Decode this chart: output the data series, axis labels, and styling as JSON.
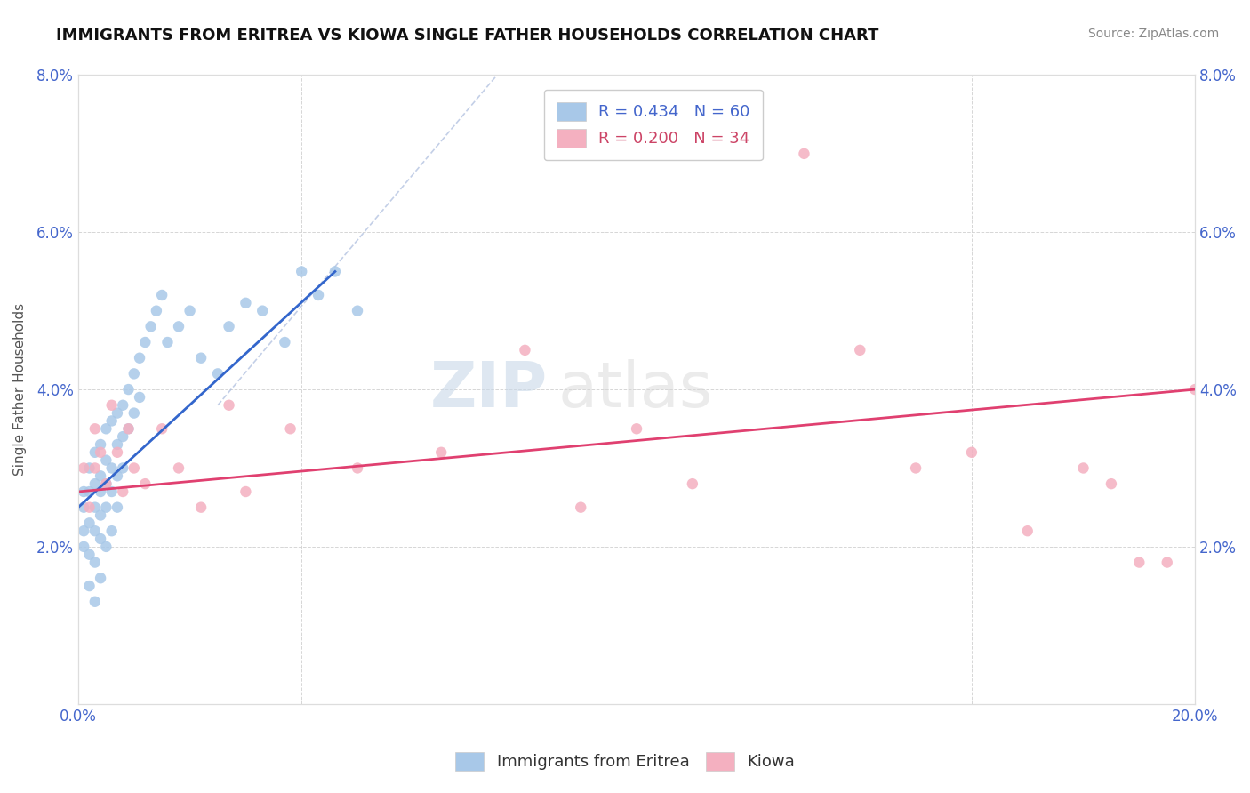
{
  "title": "IMMIGRANTS FROM ERITREA VS KIOWA SINGLE FATHER HOUSEHOLDS CORRELATION CHART",
  "source": "Source: ZipAtlas.com",
  "ylabel": "Single Father Households",
  "xlim": [
    0.0,
    0.2
  ],
  "ylim": [
    0.0,
    0.08
  ],
  "xtick_vals": [
    0.0,
    0.04,
    0.08,
    0.12,
    0.16,
    0.2
  ],
  "ytick_vals": [
    0.0,
    0.02,
    0.04,
    0.06,
    0.08
  ],
  "x_tick_labels": [
    "0.0%",
    "",
    "",
    "",
    "",
    "20.0%"
  ],
  "y_tick_labels": [
    "",
    "2.0%",
    "4.0%",
    "6.0%",
    "8.0%"
  ],
  "blue_color": "#a8c8e8",
  "pink_color": "#f4b0c0",
  "blue_line_color": "#3366cc",
  "pink_line_color": "#e04070",
  "legend_label_blue": "R = 0.434   N = 60",
  "legend_label_pink": "R = 0.200   N = 34",
  "legend_text_blue": "#4466cc",
  "legend_text_pink": "#cc4466",
  "tick_color": "#4466cc",
  "grid_color": "#cccccc",
  "background_color": "#ffffff",
  "title_fontsize": 13,
  "axis_label_fontsize": 11,
  "tick_fontsize": 12,
  "legend_fontsize": 13,
  "source_fontsize": 10,
  "blue_line_x": [
    0.0,
    0.046
  ],
  "blue_line_y": [
    0.025,
    0.055
  ],
  "pink_line_x": [
    0.0,
    0.2
  ],
  "pink_line_y": [
    0.027,
    0.04
  ],
  "dash_line_x": [
    0.025,
    0.075
  ],
  "dash_line_y": [
    0.038,
    0.08
  ],
  "blue_x": [
    0.001,
    0.001,
    0.001,
    0.001,
    0.002,
    0.002,
    0.002,
    0.002,
    0.002,
    0.003,
    0.003,
    0.003,
    0.003,
    0.003,
    0.003,
    0.004,
    0.004,
    0.004,
    0.004,
    0.004,
    0.004,
    0.005,
    0.005,
    0.005,
    0.005,
    0.005,
    0.006,
    0.006,
    0.006,
    0.006,
    0.007,
    0.007,
    0.007,
    0.007,
    0.008,
    0.008,
    0.008,
    0.009,
    0.009,
    0.01,
    0.01,
    0.011,
    0.011,
    0.012,
    0.013,
    0.014,
    0.015,
    0.016,
    0.018,
    0.02,
    0.022,
    0.025,
    0.027,
    0.03,
    0.033,
    0.037,
    0.04,
    0.043,
    0.046,
    0.05
  ],
  "blue_y": [
    0.027,
    0.025,
    0.022,
    0.02,
    0.03,
    0.027,
    0.023,
    0.019,
    0.015,
    0.032,
    0.028,
    0.025,
    0.022,
    0.018,
    0.013,
    0.033,
    0.029,
    0.027,
    0.024,
    0.021,
    0.016,
    0.035,
    0.031,
    0.028,
    0.025,
    0.02,
    0.036,
    0.03,
    0.027,
    0.022,
    0.037,
    0.033,
    0.029,
    0.025,
    0.038,
    0.034,
    0.03,
    0.04,
    0.035,
    0.042,
    0.037,
    0.044,
    0.039,
    0.046,
    0.048,
    0.05,
    0.052,
    0.046,
    0.048,
    0.05,
    0.044,
    0.042,
    0.048,
    0.051,
    0.05,
    0.046,
    0.055,
    0.052,
    0.055,
    0.05
  ],
  "pink_x": [
    0.001,
    0.002,
    0.003,
    0.003,
    0.004,
    0.005,
    0.006,
    0.007,
    0.008,
    0.009,
    0.01,
    0.012,
    0.015,
    0.018,
    0.022,
    0.027,
    0.03,
    0.038,
    0.05,
    0.065,
    0.08,
    0.09,
    0.1,
    0.11,
    0.13,
    0.14,
    0.15,
    0.16,
    0.17,
    0.18,
    0.185,
    0.19,
    0.195,
    0.2
  ],
  "pink_y": [
    0.03,
    0.025,
    0.035,
    0.03,
    0.032,
    0.028,
    0.038,
    0.032,
    0.027,
    0.035,
    0.03,
    0.028,
    0.035,
    0.03,
    0.025,
    0.038,
    0.027,
    0.035,
    0.03,
    0.032,
    0.045,
    0.025,
    0.035,
    0.028,
    0.07,
    0.045,
    0.03,
    0.032,
    0.022,
    0.03,
    0.028,
    0.018,
    0.018,
    0.04
  ]
}
